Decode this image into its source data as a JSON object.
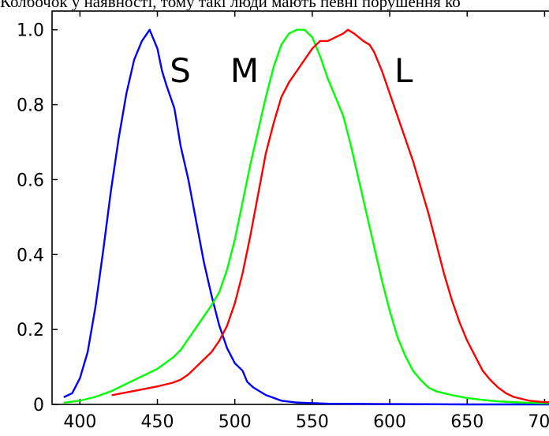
{
  "caption": "Колбочок у наявності, тому такі люди мають певні порушення ко",
  "chart_data": {
    "type": "line",
    "title": "",
    "xlabel": "",
    "ylabel": "",
    "xlim": [
      382,
      712
    ],
    "ylim": [
      0,
      1.05
    ],
    "grid": false,
    "legend": "none",
    "x_ticks": [
      400,
      450,
      500,
      550,
      600,
      650,
      700
    ],
    "x_tick_labels": [
      "400",
      "450",
      "500",
      "550",
      "600",
      "650",
      "700"
    ],
    "y_ticks": [
      0,
      0.2,
      0.4,
      0.6,
      0.8,
      1.0
    ],
    "y_tick_labels": [
      "0",
      "0.2",
      "0.4",
      "0.6",
      "0.8",
      "1.0"
    ],
    "series": [
      {
        "name": "S",
        "color": "#0000ff",
        "label_at": [
          458,
          0.86
        ],
        "points": [
          [
            390,
            0.02
          ],
          [
            395,
            0.03
          ],
          [
            400,
            0.07
          ],
          [
            405,
            0.14
          ],
          [
            410,
            0.26
          ],
          [
            415,
            0.41
          ],
          [
            420,
            0.57
          ],
          [
            425,
            0.71
          ],
          [
            430,
            0.83
          ],
          [
            435,
            0.92
          ],
          [
            440,
            0.97
          ],
          [
            445,
            1.0
          ],
          [
            450,
            0.95
          ],
          [
            453,
            0.89
          ],
          [
            456,
            0.85
          ],
          [
            461,
            0.79
          ],
          [
            465,
            0.69
          ],
          [
            470,
            0.6
          ],
          [
            475,
            0.49
          ],
          [
            480,
            0.38
          ],
          [
            485,
            0.29
          ],
          [
            490,
            0.21
          ],
          [
            495,
            0.15
          ],
          [
            500,
            0.11
          ],
          [
            505,
            0.09
          ],
          [
            508,
            0.06
          ],
          [
            512,
            0.045
          ],
          [
            520,
            0.025
          ],
          [
            530,
            0.01
          ],
          [
            540,
            0.005
          ],
          [
            560,
            0.002
          ],
          [
            600,
            0.001
          ],
          [
            650,
            0.0
          ],
          [
            712,
            0.0
          ]
        ]
      },
      {
        "name": "M",
        "color": "#00ff00",
        "label_at": [
          497,
          0.86
        ],
        "points": [
          [
            390,
            0.005
          ],
          [
            400,
            0.01
          ],
          [
            410,
            0.02
          ],
          [
            420,
            0.035
          ],
          [
            430,
            0.055
          ],
          [
            440,
            0.075
          ],
          [
            450,
            0.095
          ],
          [
            455,
            0.11
          ],
          [
            460,
            0.125
          ],
          [
            465,
            0.145
          ],
          [
            470,
            0.175
          ],
          [
            475,
            0.205
          ],
          [
            480,
            0.235
          ],
          [
            485,
            0.265
          ],
          [
            490,
            0.3
          ],
          [
            495,
            0.36
          ],
          [
            500,
            0.44
          ],
          [
            505,
            0.54
          ],
          [
            510,
            0.64
          ],
          [
            515,
            0.73
          ],
          [
            520,
            0.82
          ],
          [
            525,
            0.9
          ],
          [
            530,
            0.96
          ],
          [
            535,
            0.99
          ],
          [
            540,
            1.0
          ],
          [
            545,
            1.0
          ],
          [
            550,
            0.98
          ],
          [
            555,
            0.93
          ],
          [
            560,
            0.87
          ],
          [
            565,
            0.82
          ],
          [
            570,
            0.77
          ],
          [
            575,
            0.69
          ],
          [
            580,
            0.6
          ],
          [
            585,
            0.51
          ],
          [
            590,
            0.42
          ],
          [
            595,
            0.33
          ],
          [
            600,
            0.25
          ],
          [
            605,
            0.18
          ],
          [
            610,
            0.13
          ],
          [
            615,
            0.09
          ],
          [
            620,
            0.065
          ],
          [
            625,
            0.045
          ],
          [
            630,
            0.035
          ],
          [
            640,
            0.025
          ],
          [
            650,
            0.017
          ],
          [
            660,
            0.012
          ],
          [
            670,
            0.008
          ],
          [
            680,
            0.006
          ],
          [
            690,
            0.004
          ],
          [
            700,
            0.003
          ],
          [
            712,
            0.002
          ]
        ]
      },
      {
        "name": "L",
        "color": "#ff0000",
        "label_at": [
          603,
          0.86
        ],
        "points": [
          [
            421,
            0.025
          ],
          [
            430,
            0.032
          ],
          [
            440,
            0.04
          ],
          [
            450,
            0.048
          ],
          [
            460,
            0.058
          ],
          [
            465,
            0.066
          ],
          [
            470,
            0.08
          ],
          [
            475,
            0.1
          ],
          [
            480,
            0.12
          ],
          [
            485,
            0.14
          ],
          [
            490,
            0.17
          ],
          [
            495,
            0.21
          ],
          [
            500,
            0.27
          ],
          [
            505,
            0.35
          ],
          [
            510,
            0.45
          ],
          [
            515,
            0.56
          ],
          [
            520,
            0.67
          ],
          [
            525,
            0.75
          ],
          [
            530,
            0.82
          ],
          [
            535,
            0.86
          ],
          [
            540,
            0.89
          ],
          [
            545,
            0.92
          ],
          [
            550,
            0.95
          ],
          [
            555,
            0.97
          ],
          [
            560,
            0.97
          ],
          [
            565,
            0.98
          ],
          [
            570,
            0.99
          ],
          [
            573,
            1.0
          ],
          [
            577,
            0.99
          ],
          [
            580,
            0.98
          ],
          [
            583,
            0.97
          ],
          [
            587,
            0.96
          ],
          [
            590,
            0.94
          ],
          [
            595,
            0.89
          ],
          [
            600,
            0.83
          ],
          [
            605,
            0.77
          ],
          [
            610,
            0.71
          ],
          [
            615,
            0.65
          ],
          [
            620,
            0.58
          ],
          [
            625,
            0.51
          ],
          [
            630,
            0.43
          ],
          [
            635,
            0.35
          ],
          [
            640,
            0.28
          ],
          [
            645,
            0.22
          ],
          [
            650,
            0.17
          ],
          [
            655,
            0.13
          ],
          [
            660,
            0.09
          ],
          [
            665,
            0.065
          ],
          [
            670,
            0.045
          ],
          [
            675,
            0.03
          ],
          [
            680,
            0.02
          ],
          [
            690,
            0.01
          ],
          [
            700,
            0.006
          ],
          [
            712,
            0.004
          ]
        ]
      }
    ]
  }
}
